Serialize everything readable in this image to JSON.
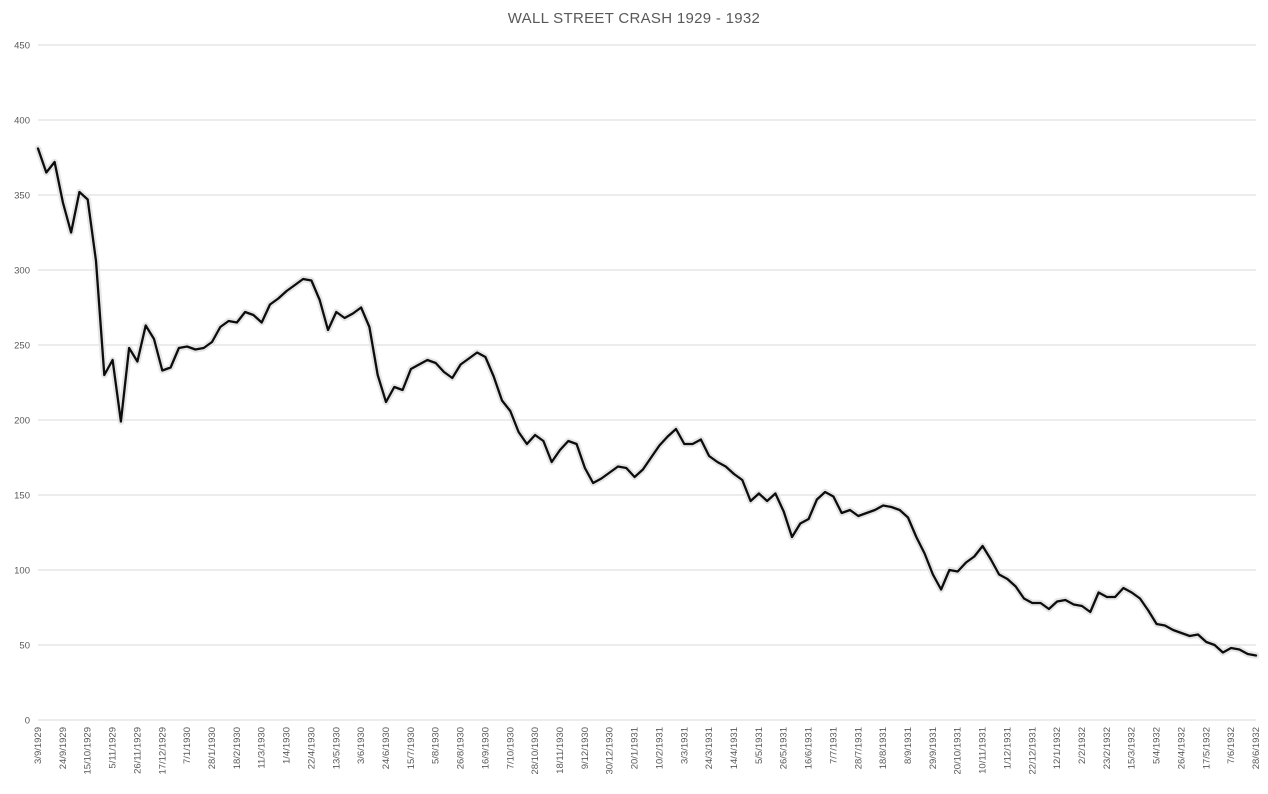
{
  "chart_data": {
    "type": "line",
    "title": "WALL STREET CRASH 1929 - 1932",
    "ylabel": "",
    "xlabel": "",
    "ylim": [
      0,
      450
    ],
    "y_ticks": [
      0,
      50,
      100,
      150,
      200,
      250,
      300,
      350,
      400,
      450
    ],
    "grid": "horizontal",
    "legend": "none",
    "line_color": "#0d0d0d",
    "glow_color": "#e6e6e6",
    "gridline_color": "#d9d9d9",
    "label_color": "#595959",
    "x_tick_every": 3,
    "x_tick_labels": [
      "3/9/1929",
      "24/9/1929",
      "15/10/1929",
      "5/11/1929",
      "26/11/1929",
      "17/12/1929",
      "7/1/1930",
      "28/1/1930",
      "18/2/1930",
      "11/3/1930",
      "1/4/1930",
      "22/4/1930",
      "13/5/1930",
      "3/6/1930",
      "24/6/1930",
      "15/7/1930",
      "5/8/1930",
      "26/8/1930",
      "16/9/1930",
      "7/10/1930",
      "28/10/1930",
      "18/11/1930",
      "9/12/1930",
      "30/12/1930",
      "20/1/1931",
      "10/2/1931",
      "3/3/1931",
      "24/3/1931",
      "14/4/1931",
      "5/5/1931",
      "26/5/1931",
      "16/6/1931",
      "7/7/1931",
      "28/7/1931",
      "18/8/1931",
      "8/9/1931",
      "29/9/1931",
      "20/10/1931",
      "10/11/1931",
      "1/12/1931",
      "22/12/1931",
      "12/1/1932",
      "2/2/1932",
      "23/2/1932",
      "15/3/1932",
      "5/4/1932",
      "26/4/1932",
      "17/5/1932",
      "7/6/1932",
      "28/6/1932"
    ],
    "values": [
      381,
      365,
      372,
      345,
      325,
      352,
      347,
      306,
      230,
      240,
      199,
      248,
      239,
      263,
      254,
      233,
      235,
      248,
      249,
      247,
      248,
      252,
      262,
      266,
      265,
      272,
      270,
      265,
      277,
      281,
      286,
      290,
      294,
      293,
      280,
      260,
      272,
      268,
      271,
      275,
      262,
      230,
      212,
      222,
      220,
      234,
      237,
      240,
      238,
      232,
      228,
      237,
      241,
      245,
      242,
      229,
      213,
      206,
      192,
      184,
      190,
      186,
      172,
      180,
      186,
      184,
      168,
      158,
      161,
      165,
      169,
      168,
      162,
      167,
      175,
      183,
      189,
      194,
      184,
      184,
      187,
      176,
      172,
      169,
      164,
      160,
      146,
      151,
      146,
      151,
      139,
      122,
      131,
      134,
      147,
      152,
      149,
      138,
      140,
      136,
      138,
      140,
      143,
      142,
      140,
      135,
      122,
      111,
      97,
      87,
      100,
      99,
      105,
      109,
      116,
      107,
      97,
      94,
      89,
      81,
      78,
      78,
      74,
      79,
      80,
      77,
      76,
      72,
      85,
      82,
      82,
      88,
      85,
      81,
      73,
      64,
      63,
      60,
      58,
      56,
      57,
      52,
      50,
      45,
      48,
      47,
      44,
      43
    ]
  }
}
